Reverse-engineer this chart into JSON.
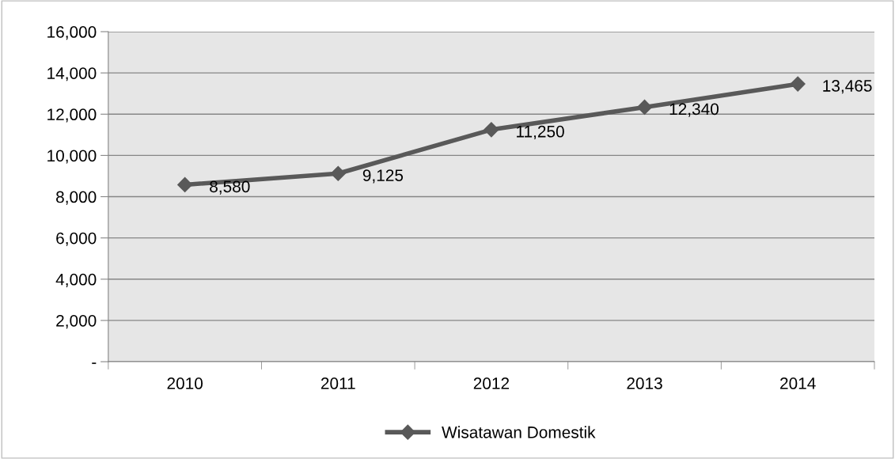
{
  "chart_data": {
    "type": "line",
    "categories": [
      "2010",
      "2011",
      "2012",
      "2013",
      "2014"
    ],
    "series": [
      {
        "name": "Wisatawan Domestik",
        "color": "#595959",
        "values": [
          8580,
          9125,
          11250,
          12340,
          13465
        ],
        "value_labels": [
          "8,580",
          "9,125",
          "11,250",
          "12,340",
          "13,465"
        ]
      }
    ],
    "ylim": [
      0,
      16000
    ],
    "yticks": [
      {
        "value": 0,
        "label": "-"
      },
      {
        "value": 2000,
        "label": "2,000"
      },
      {
        "value": 4000,
        "label": "4,000"
      },
      {
        "value": 6000,
        "label": "6,000"
      },
      {
        "value": 8000,
        "label": "8,000"
      },
      {
        "value": 10000,
        "label": "10,000"
      },
      {
        "value": 12000,
        "label": "12,000"
      },
      {
        "value": 14000,
        "label": "14,000"
      },
      {
        "value": 16000,
        "label": "16,000"
      }
    ],
    "grid": "y",
    "legend": "bottom",
    "marker": "diamond",
    "line_style": "solid"
  }
}
